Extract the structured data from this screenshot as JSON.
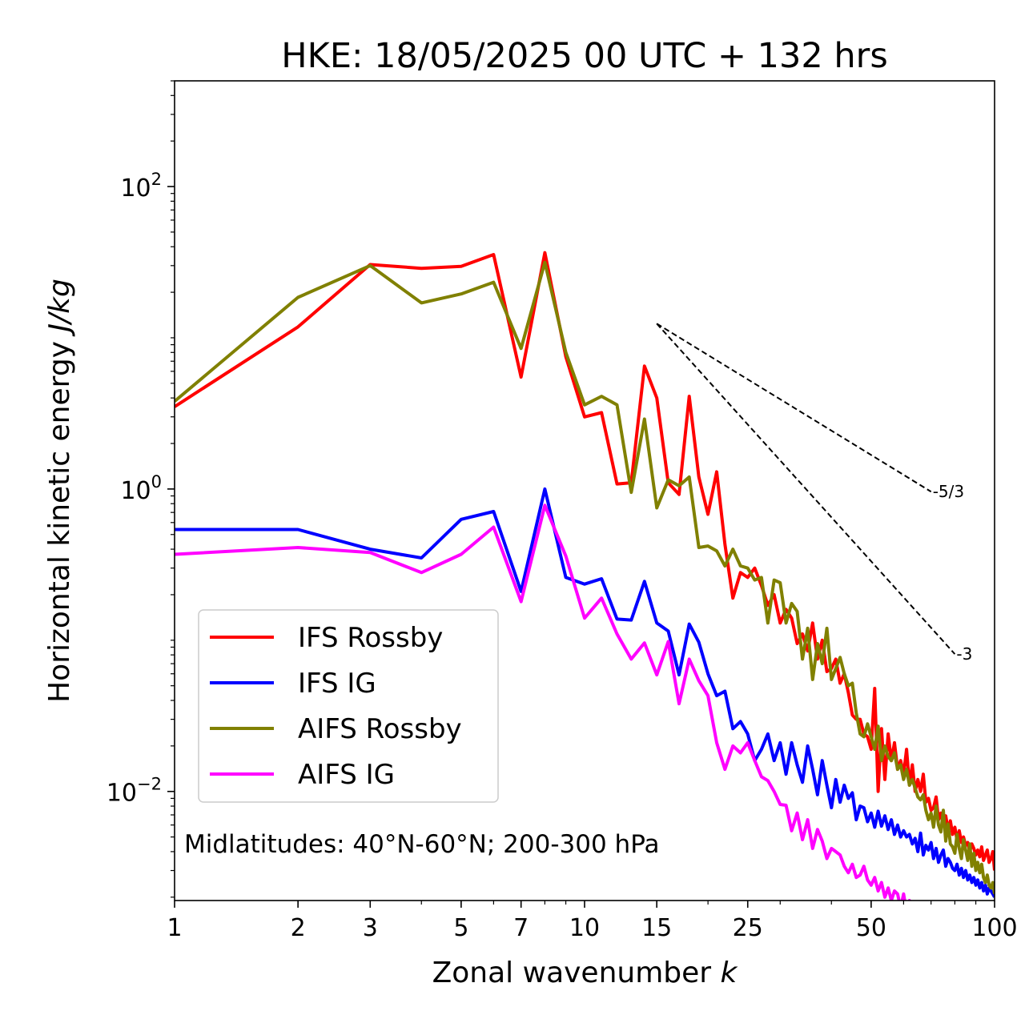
{
  "chart_data": {
    "type": "line",
    "title": "HKE: 18/05/2025 00 UTC + 132 hrs",
    "xlabel": "Zonal wavenumber",
    "xlabel_var": "k",
    "ylabel": "Horizontal kinetic energy",
    "ylabel_unit": "J/kg",
    "xscale": "log",
    "yscale": "log",
    "xlim": [
      1,
      100
    ],
    "ylim": [
      0.0019,
      500
    ],
    "xticks": [
      1,
      2,
      3,
      5,
      7,
      10,
      15,
      25,
      50,
      100
    ],
    "xtick_labels": [
      "1",
      "2",
      "3",
      "5",
      "7",
      "10",
      "15",
      "25",
      "50",
      "100"
    ],
    "yticks": [
      0.01,
      1,
      100
    ],
    "ytick_labels": [
      {
        "base": "10",
        "exp": "−2"
      },
      {
        "base": "10",
        "exp": "0"
      },
      {
        "base": "10",
        "exp": "2"
      }
    ],
    "grid": false,
    "legend": {
      "position": "lower-left",
      "entries": [
        "IFS Rossby",
        "IFS IG",
        "AIFS Rossby",
        "AIFS IG"
      ]
    },
    "annotation": "Midlatitudes: 40°N-60°N; 200-300 hPa",
    "reference_slopes": [
      {
        "label": "-5/3",
        "x": [
          15,
          70
        ],
        "y": [
          12.4,
          0.96
        ]
      },
      {
        "label": "-3",
        "x": [
          15,
          80
        ],
        "y": [
          12.4,
          0.081
        ]
      }
    ],
    "series": [
      {
        "name": "IFS Rossby",
        "color": "#ff0000",
        "x": [
          1,
          2,
          3,
          4,
          5,
          6,
          7,
          8,
          9,
          10,
          11,
          12,
          13,
          14,
          15,
          16,
          17,
          18,
          19,
          20,
          21,
          22,
          23,
          24,
          25,
          26,
          27,
          28,
          29,
          30,
          31,
          32,
          33,
          34,
          35,
          36,
          37,
          38,
          39,
          40,
          41,
          42,
          43,
          44,
          45,
          46,
          47,
          48,
          49,
          50,
          51,
          52,
          53,
          54,
          55,
          56,
          57,
          58,
          59,
          60,
          61,
          62,
          63,
          64,
          65,
          66,
          67,
          68,
          69,
          70,
          71,
          72,
          73,
          74,
          75,
          76,
          77,
          78,
          79,
          80,
          81,
          82,
          83,
          84,
          85,
          86,
          87,
          88,
          89,
          90,
          91,
          92,
          93,
          94,
          95,
          96,
          97,
          98,
          99,
          100
        ],
        "y": [
          3.5,
          11.8,
          30.5,
          28.8,
          29.7,
          35.5,
          5.5,
          36.5,
          7.5,
          3.0,
          3.2,
          1.08,
          1.1,
          6.5,
          4.0,
          1.1,
          0.92,
          4.1,
          1.2,
          0.68,
          1.3,
          0.43,
          0.19,
          0.28,
          0.26,
          0.3,
          0.23,
          0.17,
          0.2,
          0.13,
          0.16,
          0.14,
          0.095,
          0.11,
          0.085,
          0.13,
          0.075,
          0.1,
          0.062,
          0.065,
          0.075,
          0.052,
          0.06,
          0.045,
          0.032,
          0.03,
          0.03,
          0.024,
          0.023,
          0.019,
          0.048,
          0.01,
          0.026,
          0.012,
          0.024,
          0.016,
          0.021,
          0.014,
          0.016,
          0.013,
          0.019,
          0.011,
          0.015,
          0.01,
          0.012,
          0.01,
          0.013,
          0.0085,
          0.009,
          0.0075,
          0.0078,
          0.0092,
          0.0065,
          0.0072,
          0.006,
          0.0069,
          0.0056,
          0.0064,
          0.0052,
          0.0058,
          0.0048,
          0.0055,
          0.0046,
          0.005,
          0.0044,
          0.0046,
          0.004,
          0.0045,
          0.0042,
          0.0038,
          0.0041,
          0.0037,
          0.0043,
          0.0035,
          0.0038,
          0.0041,
          0.0034,
          0.0036,
          0.004,
          0.003
        ]
      },
      {
        "name": "IFS IG",
        "color": "#0000ff",
        "x": [
          1,
          2,
          3,
          4,
          5,
          6,
          7,
          8,
          9,
          10,
          11,
          12,
          13,
          14,
          15,
          16,
          17,
          18,
          19,
          20,
          21,
          22,
          23,
          24,
          25,
          26,
          27,
          28,
          29,
          30,
          31,
          32,
          33,
          34,
          35,
          36,
          37,
          38,
          39,
          40,
          41,
          42,
          43,
          44,
          45,
          46,
          47,
          48,
          49,
          50,
          51,
          52,
          53,
          54,
          55,
          56,
          57,
          58,
          59,
          60,
          61,
          62,
          63,
          64,
          65,
          66,
          67,
          68,
          69,
          70,
          71,
          72,
          73,
          74,
          75,
          76,
          77,
          78,
          79,
          80,
          81,
          82,
          83,
          84,
          85,
          86,
          87,
          88,
          89,
          90,
          91,
          92,
          93,
          94,
          95,
          96,
          97,
          98,
          99,
          100
        ],
        "y": [
          0.54,
          0.54,
          0.4,
          0.35,
          0.63,
          0.71,
          0.21,
          1.0,
          0.26,
          0.235,
          0.255,
          0.138,
          0.136,
          0.245,
          0.13,
          0.115,
          0.059,
          0.128,
          0.097,
          0.06,
          0.043,
          0.046,
          0.026,
          0.029,
          0.024,
          0.016,
          0.019,
          0.024,
          0.016,
          0.021,
          0.013,
          0.021,
          0.015,
          0.0115,
          0.02,
          0.014,
          0.0095,
          0.016,
          0.011,
          0.0078,
          0.012,
          0.0085,
          0.011,
          0.009,
          0.0098,
          0.0065,
          0.008,
          0.0078,
          0.0063,
          0.0072,
          0.0058,
          0.0074,
          0.0059,
          0.0069,
          0.0056,
          0.0065,
          0.0052,
          0.006,
          0.005,
          0.0055,
          0.005,
          0.0052,
          0.0045,
          0.0049,
          0.004,
          0.0053,
          0.0038,
          0.0044,
          0.0041,
          0.0046,
          0.0036,
          0.0042,
          0.0034,
          0.0038,
          0.0041,
          0.0032,
          0.0036,
          0.0034,
          0.0031,
          0.003,
          0.0033,
          0.0028,
          0.0031,
          0.0027,
          0.003,
          0.0026,
          0.0028,
          0.0025,
          0.0027,
          0.0024,
          0.0026,
          0.0023,
          0.0025,
          0.0022,
          0.0024,
          0.0021,
          0.0023,
          0.0022,
          0.0021,
          0.002
        ]
      },
      {
        "name": "AIFS Rossby",
        "color": "#808000",
        "x": [
          1,
          2,
          3,
          4,
          5,
          6,
          7,
          8,
          9,
          10,
          11,
          12,
          13,
          14,
          15,
          16,
          17,
          18,
          19,
          20,
          21,
          22,
          23,
          24,
          25,
          26,
          27,
          28,
          29,
          30,
          31,
          32,
          33,
          34,
          35,
          36,
          37,
          38,
          39,
          40,
          41,
          42,
          43,
          44,
          45,
          46,
          47,
          48,
          49,
          50,
          51,
          52,
          53,
          54,
          55,
          56,
          57,
          58,
          59,
          60,
          61,
          62,
          63,
          64,
          65,
          66,
          67,
          68,
          69,
          70,
          71,
          72,
          73,
          74,
          75,
          76,
          77,
          78,
          79,
          80,
          81,
          82,
          83,
          84,
          85,
          86,
          87,
          88,
          89,
          90,
          91,
          92,
          93,
          94,
          95,
          96,
          97,
          98,
          99,
          100
        ],
        "y": [
          3.8,
          18.5,
          30.0,
          17.0,
          19.5,
          23.3,
          8.5,
          31.5,
          8.0,
          3.6,
          4.1,
          3.6,
          0.95,
          2.9,
          0.75,
          1.15,
          1.05,
          1.2,
          0.41,
          0.42,
          0.39,
          0.31,
          0.4,
          0.31,
          0.3,
          0.25,
          0.26,
          0.13,
          0.25,
          0.24,
          0.13,
          0.175,
          0.155,
          0.075,
          0.12,
          0.055,
          0.095,
          0.07,
          0.12,
          0.055,
          0.065,
          0.077,
          0.06,
          0.05,
          0.052,
          0.033,
          0.024,
          0.023,
          0.028,
          0.023,
          0.019,
          0.027,
          0.016,
          0.02,
          0.017,
          0.016,
          0.018,
          0.014,
          0.015,
          0.012,
          0.014,
          0.011,
          0.012,
          0.0105,
          0.0092,
          0.0088,
          0.0095,
          0.0075,
          0.0065,
          0.0072,
          0.0058,
          0.008,
          0.006,
          0.0054,
          0.0075,
          0.0047,
          0.0061,
          0.0045,
          0.0043,
          0.0039,
          0.0052,
          0.0042,
          0.0036,
          0.0048,
          0.0041,
          0.0035,
          0.0045,
          0.0032,
          0.0039,
          0.003,
          0.0034,
          0.0029,
          0.0033,
          0.0027,
          0.0025,
          0.0028,
          0.0024,
          0.0023,
          0.0025,
          0.0021
        ]
      },
      {
        "name": "AIFS IG",
        "color": "#ff00ff",
        "x": [
          1,
          2,
          3,
          4,
          5,
          6,
          7,
          8,
          9,
          10,
          11,
          12,
          13,
          14,
          15,
          16,
          17,
          18,
          19,
          20,
          21,
          22,
          23,
          24,
          25,
          26,
          27,
          28,
          29,
          30,
          31,
          32,
          33,
          34,
          35,
          36,
          37,
          38,
          39,
          40,
          41,
          42,
          43,
          44,
          45,
          46,
          47,
          48,
          49,
          50,
          51,
          52,
          53,
          54,
          55,
          56,
          57,
          58,
          59,
          60,
          61,
          62,
          63,
          64,
          65,
          66,
          67,
          68,
          69,
          70
        ],
        "y": [
          0.37,
          0.41,
          0.38,
          0.28,
          0.37,
          0.56,
          0.18,
          0.78,
          0.36,
          0.14,
          0.19,
          0.11,
          0.075,
          0.096,
          0.059,
          0.098,
          0.038,
          0.075,
          0.054,
          0.043,
          0.021,
          0.014,
          0.02,
          0.018,
          0.021,
          0.016,
          0.0125,
          0.0118,
          0.01,
          0.0082,
          0.0081,
          0.0055,
          0.0072,
          0.0048,
          0.0065,
          0.0042,
          0.0056,
          0.0047,
          0.0036,
          0.0042,
          0.004,
          0.0038,
          0.0032,
          0.0029,
          0.0033,
          0.0027,
          0.0028,
          0.0032,
          0.0026,
          0.0024,
          0.0027,
          0.0022,
          0.0025,
          0.002,
          0.0023,
          0.0019,
          0.0022,
          0.0021,
          0.0017,
          0.0021,
          0.0016,
          0.0019,
          0.0018,
          0.0017,
          0.0015,
          0.0016,
          0.0015,
          0.0014,
          0.0015,
          0.0013
        ]
      }
    ]
  }
}
